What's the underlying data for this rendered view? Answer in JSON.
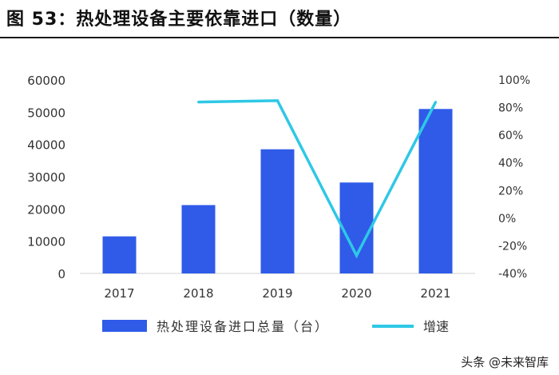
{
  "header": {
    "title": "图 53：热处理设备主要依靠进口（数量）"
  },
  "watermark": {
    "text": "头条 @未来智库"
  },
  "colors": {
    "bar": "#2f5be8",
    "line": "#2ec8e6",
    "axis": "#d0d0d0",
    "text": "#333333"
  },
  "chart_data": {
    "type": "bar",
    "categories": [
      "2017",
      "2018",
      "2019",
      "2020",
      "2021"
    ],
    "series": [
      {
        "name": "热处理设备进口总量（台）",
        "type": "bar",
        "axis": "left",
        "values": [
          11500,
          21200,
          38500,
          28200,
          51000
        ]
      },
      {
        "name": "增速",
        "type": "line",
        "axis": "right",
        "values": [
          null,
          84,
          85,
          -27,
          84
        ]
      }
    ],
    "y_left": {
      "min": 0,
      "max": 60000,
      "ticks": [
        "0",
        "10000",
        "20000",
        "30000",
        "40000",
        "50000",
        "60000"
      ]
    },
    "y_right": {
      "min": -40,
      "max": 100,
      "ticks": [
        "-40%",
        "-20%",
        "0%",
        "20%",
        "40%",
        "60%",
        "80%",
        "100%"
      ]
    },
    "grid": false,
    "legend": "bottom"
  }
}
